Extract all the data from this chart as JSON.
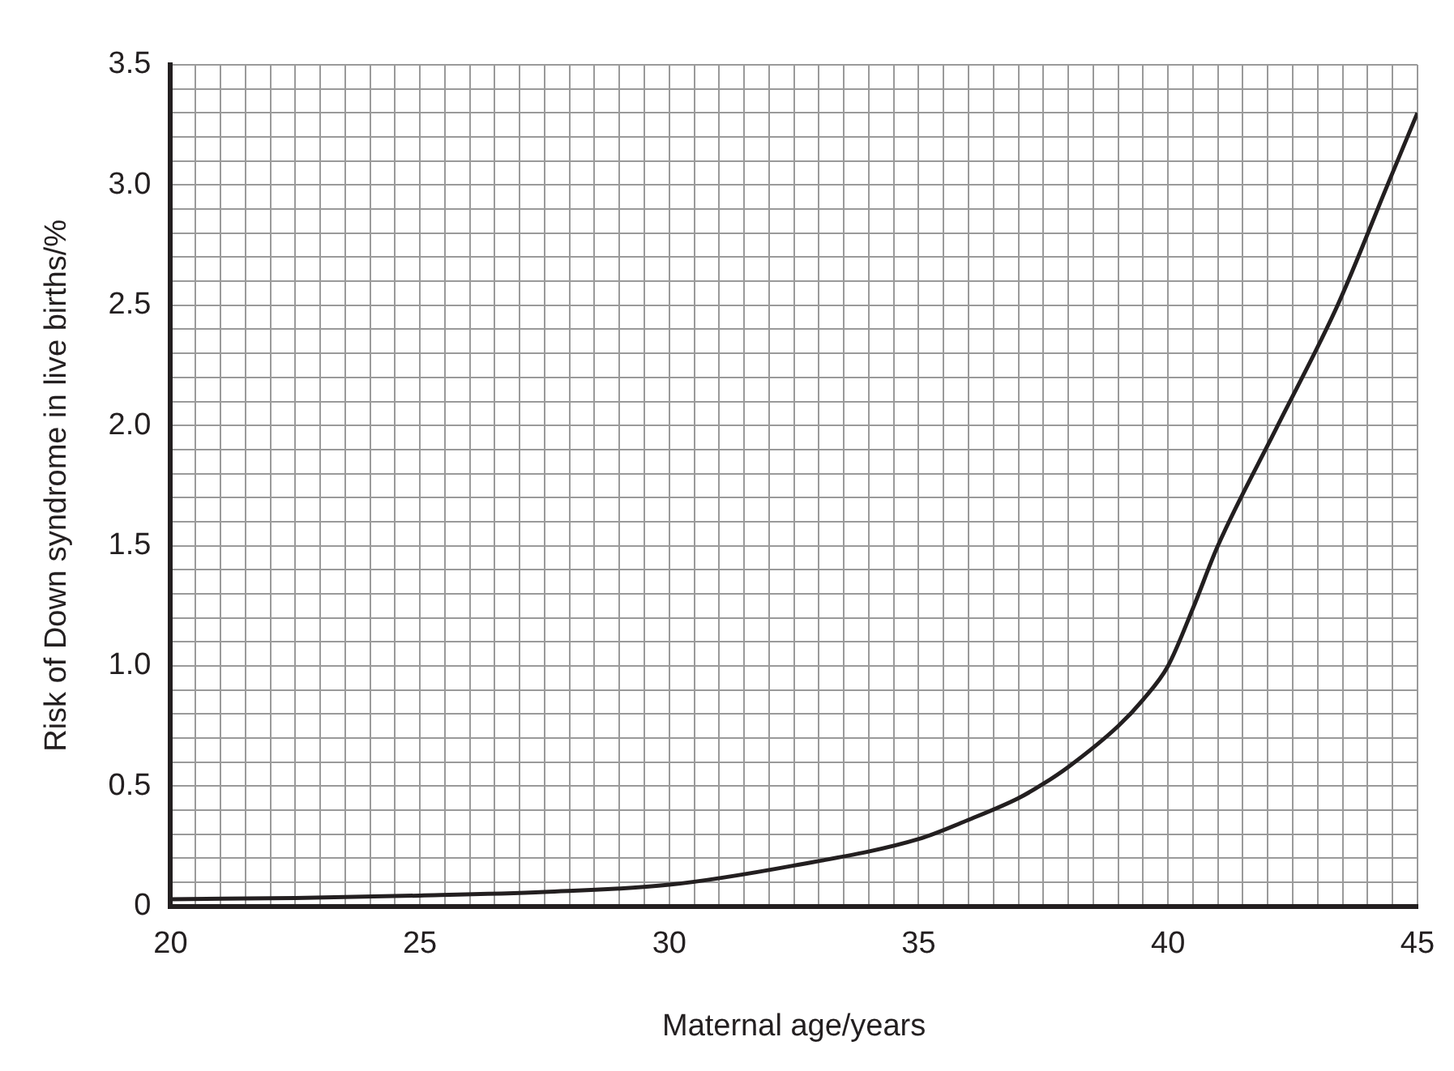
{
  "chart_data": {
    "type": "line",
    "xlabel": "Maternal age/years",
    "ylabel": "Risk of Down syndrome in live births/%",
    "x": [
      20,
      22.5,
      25,
      27.5,
      30,
      32.5,
      35,
      36,
      37,
      37.5,
      38,
      39,
      39.5,
      40,
      40.5,
      41,
      42.2,
      43.4,
      44.4,
      45
    ],
    "series": [
      {
        "color": "#231f20",
        "values": [
          0.03,
          0.035,
          0.045,
          0.06,
          0.09,
          0.17,
          0.28,
          0.36,
          0.45,
          0.51,
          0.58,
          0.75,
          0.86,
          1.0,
          1.24,
          1.5,
          2.0,
          2.5,
          3.0,
          3.3
        ]
      }
    ],
    "xlim": [
      20,
      45
    ],
    "ylim": [
      0,
      3.5
    ],
    "xticks": [
      20,
      {
        "value": 20.5,
        "label": null
      },
      {
        "value": 21,
        "label": null
      },
      {
        "value": 21.5,
        "label": null
      },
      {
        "value": 22,
        "label": null
      },
      {
        "value": 22.5,
        "label": null
      },
      {
        "value": 23,
        "label": null
      },
      {
        "value": 23.5,
        "label": null
      },
      {
        "value": 24,
        "label": null
      },
      {
        "value": 24.5,
        "label": null
      },
      25,
      {
        "value": 25.5,
        "label": null
      },
      {
        "value": 26,
        "label": null
      },
      {
        "value": 26.5,
        "label": null
      },
      {
        "value": 27,
        "label": null
      },
      {
        "value": 27.5,
        "label": null
      },
      {
        "value": 28,
        "label": null
      },
      {
        "value": 28.5,
        "label": null
      },
      {
        "value": 29,
        "label": null
      },
      {
        "value": 29.5,
        "label": null
      },
      30,
      {
        "value": 30.5,
        "label": null
      },
      {
        "value": 31,
        "label": null
      },
      {
        "value": 31.5,
        "label": null
      },
      {
        "value": 32,
        "label": null
      },
      {
        "value": 32.5,
        "label": null
      },
      {
        "value": 33,
        "label": null
      },
      {
        "value": 33.5,
        "label": null
      },
      {
        "value": 34,
        "label": null
      },
      {
        "value": 34.5,
        "label": null
      },
      35,
      {
        "value": 35.5,
        "label": null
      },
      {
        "value": 36,
        "label": null
      },
      {
        "value": 36.5,
        "label": null
      },
      {
        "value": 37,
        "label": null
      },
      {
        "value": 37.5,
        "label": null
      },
      {
        "value": 38,
        "label": null
      },
      {
        "value": 38.5,
        "label": null
      },
      {
        "value": 39,
        "label": null
      },
      {
        "value": 39.5,
        "label": null
      },
      40,
      {
        "value": 40.5,
        "label": null
      },
      {
        "value": 41,
        "label": null
      },
      {
        "value": 41.5,
        "label": null
      },
      {
        "value": 42,
        "label": null
      },
      {
        "value": 42.5,
        "label": null
      },
      {
        "value": 43,
        "label": null
      },
      {
        "value": 43.5,
        "label": null
      },
      {
        "value": 44,
        "label": null
      },
      {
        "value": 44.5,
        "label": null
      },
      45
    ],
    "yticks": [
      0,
      {
        "value": 0.1,
        "label": null
      },
      {
        "value": 0.2,
        "label": null
      },
      {
        "value": 0.3,
        "label": null
      },
      {
        "value": 0.4,
        "label": null
      },
      0.5,
      {
        "value": 0.6,
        "label": null
      },
      {
        "value": 0.7,
        "label": null
      },
      {
        "value": 0.8,
        "label": null
      },
      {
        "value": 0.9,
        "label": null
      },
      {
        "value": 1,
        "label": "1.0"
      },
      {
        "value": 1.1,
        "label": null
      },
      {
        "value": 1.2,
        "label": null
      },
      {
        "value": 1.3,
        "label": null
      },
      {
        "value": 1.4,
        "label": null
      },
      1.5,
      {
        "value": 1.6,
        "label": null
      },
      {
        "value": 1.7,
        "label": null
      },
      {
        "value": 1.8,
        "label": null
      },
      {
        "value": 1.9,
        "label": null
      },
      {
        "value": 2,
        "label": "2.0"
      },
      {
        "value": 2.1,
        "label": null
      },
      {
        "value": 2.2,
        "label": null
      },
      {
        "value": 2.3,
        "label": null
      },
      {
        "value": 2.4,
        "label": null
      },
      2.5,
      {
        "value": 2.6,
        "label": null
      },
      {
        "value": 2.7,
        "label": null
      },
      {
        "value": 2.8,
        "label": null
      },
      {
        "value": 2.9,
        "label": null
      },
      {
        "value": 3,
        "label": "3.0"
      },
      {
        "value": 3.1,
        "label": null
      },
      {
        "value": 3.2,
        "label": null
      },
      {
        "value": 3.3,
        "label": null
      },
      {
        "value": 3.4,
        "label": null
      },
      3.5
    ],
    "grid": true,
    "legend": false,
    "marker": "none",
    "line_style": "solid"
  }
}
